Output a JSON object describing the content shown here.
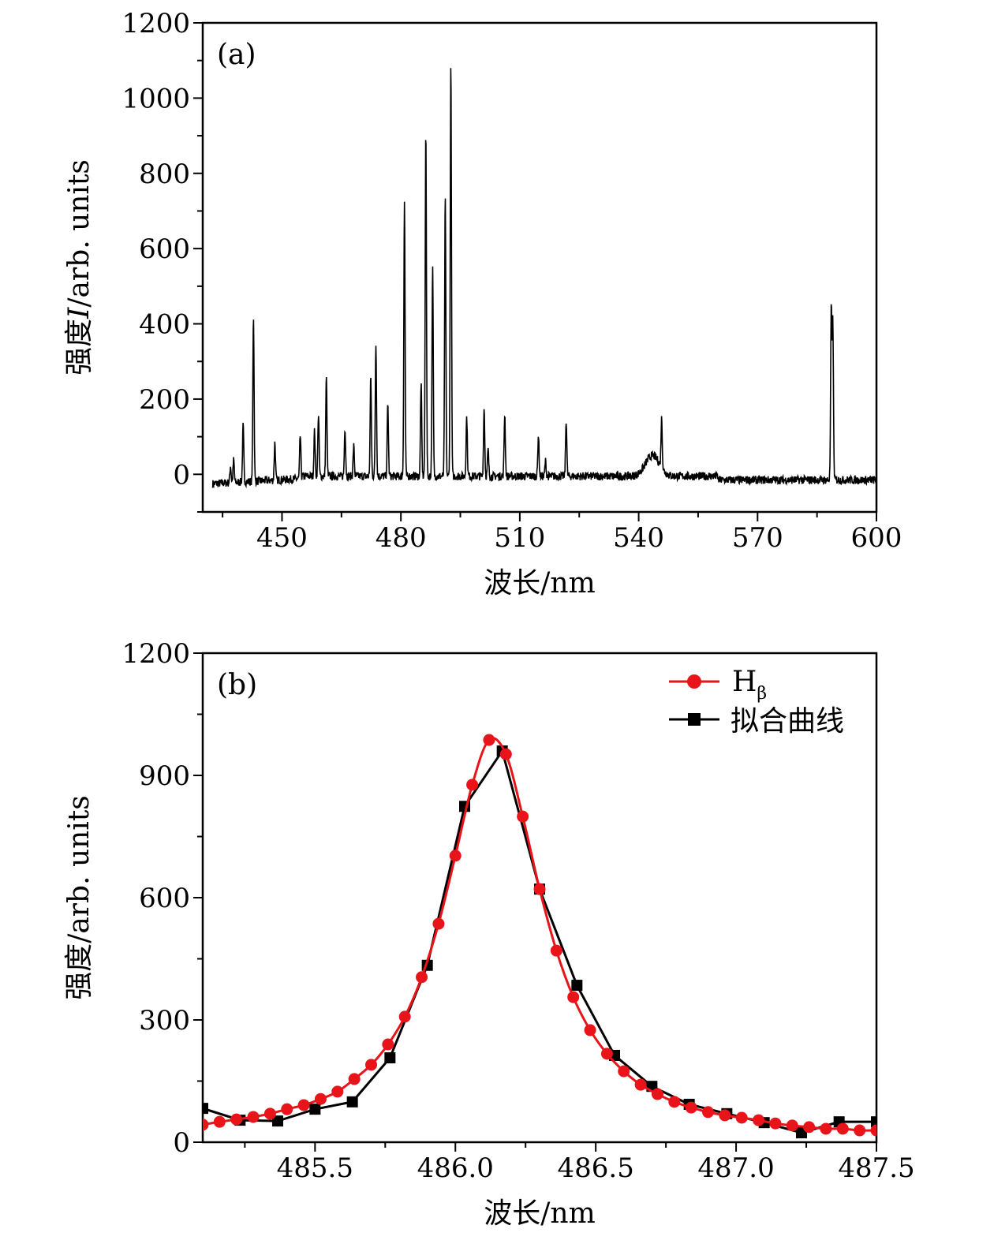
{
  "chart_data": [
    {
      "type": "line",
      "panel_label": "(a)",
      "xlabel": "波长/nm",
      "ylabel_prefix": "强度",
      "ylabel_var": "I",
      "ylabel_suffix": "/arb. units",
      "xlim": [
        430,
        600
      ],
      "ylim": [
        -100,
        1200
      ],
      "xticks": [
        450,
        480,
        510,
        540,
        570,
        600
      ],
      "yticks": [
        0,
        200,
        400,
        600,
        800,
        1000,
        1200
      ],
      "grid": false,
      "line_color": "#000000",
      "peaks": [
        {
          "x": 437.0,
          "y": 45
        },
        {
          "x": 437.8,
          "y": 60
        },
        {
          "x": 440.2,
          "y": 150
        },
        {
          "x": 442.8,
          "y": 440
        },
        {
          "x": 448.2,
          "y": 100
        },
        {
          "x": 454.6,
          "y": 115
        },
        {
          "x": 458.2,
          "y": 120
        },
        {
          "x": 459.2,
          "y": 165
        },
        {
          "x": 461.2,
          "y": 262
        },
        {
          "x": 465.9,
          "y": 130
        },
        {
          "x": 468.1,
          "y": 80
        },
        {
          "x": 472.4,
          "y": 262
        },
        {
          "x": 473.7,
          "y": 355
        },
        {
          "x": 476.7,
          "y": 190
        },
        {
          "x": 480.9,
          "y": 727
        },
        {
          "x": 485.1,
          "y": 245
        },
        {
          "x": 486.3,
          "y": 920
        },
        {
          "x": 488.0,
          "y": 553
        },
        {
          "x": 491.2,
          "y": 735
        },
        {
          "x": 492.6,
          "y": 1093
        },
        {
          "x": 496.6,
          "y": 157
        },
        {
          "x": 501.0,
          "y": 180
        },
        {
          "x": 502.0,
          "y": 70
        },
        {
          "x": 506.2,
          "y": 165
        },
        {
          "x": 514.7,
          "y": 110
        },
        {
          "x": 516.5,
          "y": 40
        },
        {
          "x": 521.7,
          "y": 150
        },
        {
          "x": 545.8,
          "y": 130
        },
        {
          "x": 588.6,
          "y": 450
        },
        {
          "x": 589.0,
          "y": 410
        }
      ],
      "broad_features": [
        {
          "x": 543.5,
          "y": 55
        }
      ]
    },
    {
      "type": "line",
      "panel_label": "(b)",
      "xlabel": "波长/nm",
      "ylabel": "强度/arb. units",
      "xlim": [
        485.1,
        487.5
      ],
      "ylim": [
        0,
        1200
      ],
      "xticks": [
        485.5,
        486.0,
        486.5,
        487.0,
        487.5
      ],
      "xtick_labels": [
        "485.5",
        "486.0",
        "486.5",
        "487.0",
        "487.5"
      ],
      "yticks": [
        0,
        300,
        600,
        900,
        1200
      ],
      "grid": false,
      "legend": "top-right",
      "series": [
        {
          "name": "H",
          "name_sub": "β",
          "color": "#e8141a",
          "marker": "circle",
          "x": [
            485.1,
            485.16,
            485.22,
            485.28,
            485.34,
            485.4,
            485.46,
            485.52,
            485.58,
            485.64,
            485.7,
            485.76,
            485.82,
            485.88,
            485.94,
            486.0,
            486.06,
            486.12,
            486.18,
            486.24,
            486.3,
            486.36,
            486.42,
            486.48,
            486.54,
            486.6,
            486.66,
            486.72,
            486.78,
            486.84,
            486.9,
            486.96,
            487.02,
            487.08,
            487.14,
            487.2,
            487.26,
            487.32,
            487.38,
            487.44,
            487.5
          ],
          "y": [
            43,
            50,
            56,
            62,
            70,
            81,
            91,
            106,
            124,
            155,
            190,
            240,
            308,
            405,
            536,
            703,
            877,
            987,
            952,
            799,
            621,
            470,
            356,
            275,
            217,
            174,
            141,
            118,
            99,
            85,
            74,
            66,
            60,
            54,
            46,
            41,
            37,
            33,
            33,
            29,
            29
          ]
        },
        {
          "name": "拟合曲线",
          "color": "#000000",
          "marker": "square",
          "x": [
            485.1,
            485.233,
            485.367,
            485.5,
            485.633,
            485.767,
            485.9,
            486.033,
            486.167,
            486.3,
            486.433,
            486.567,
            486.7,
            486.833,
            486.967,
            487.1,
            487.233,
            487.367,
            487.5
          ],
          "y": [
            83,
            54,
            52,
            81,
            99,
            207,
            434,
            824,
            960,
            621,
            385,
            213,
            137,
            93,
            70,
            48,
            23,
            50,
            50
          ]
        }
      ]
    }
  ]
}
